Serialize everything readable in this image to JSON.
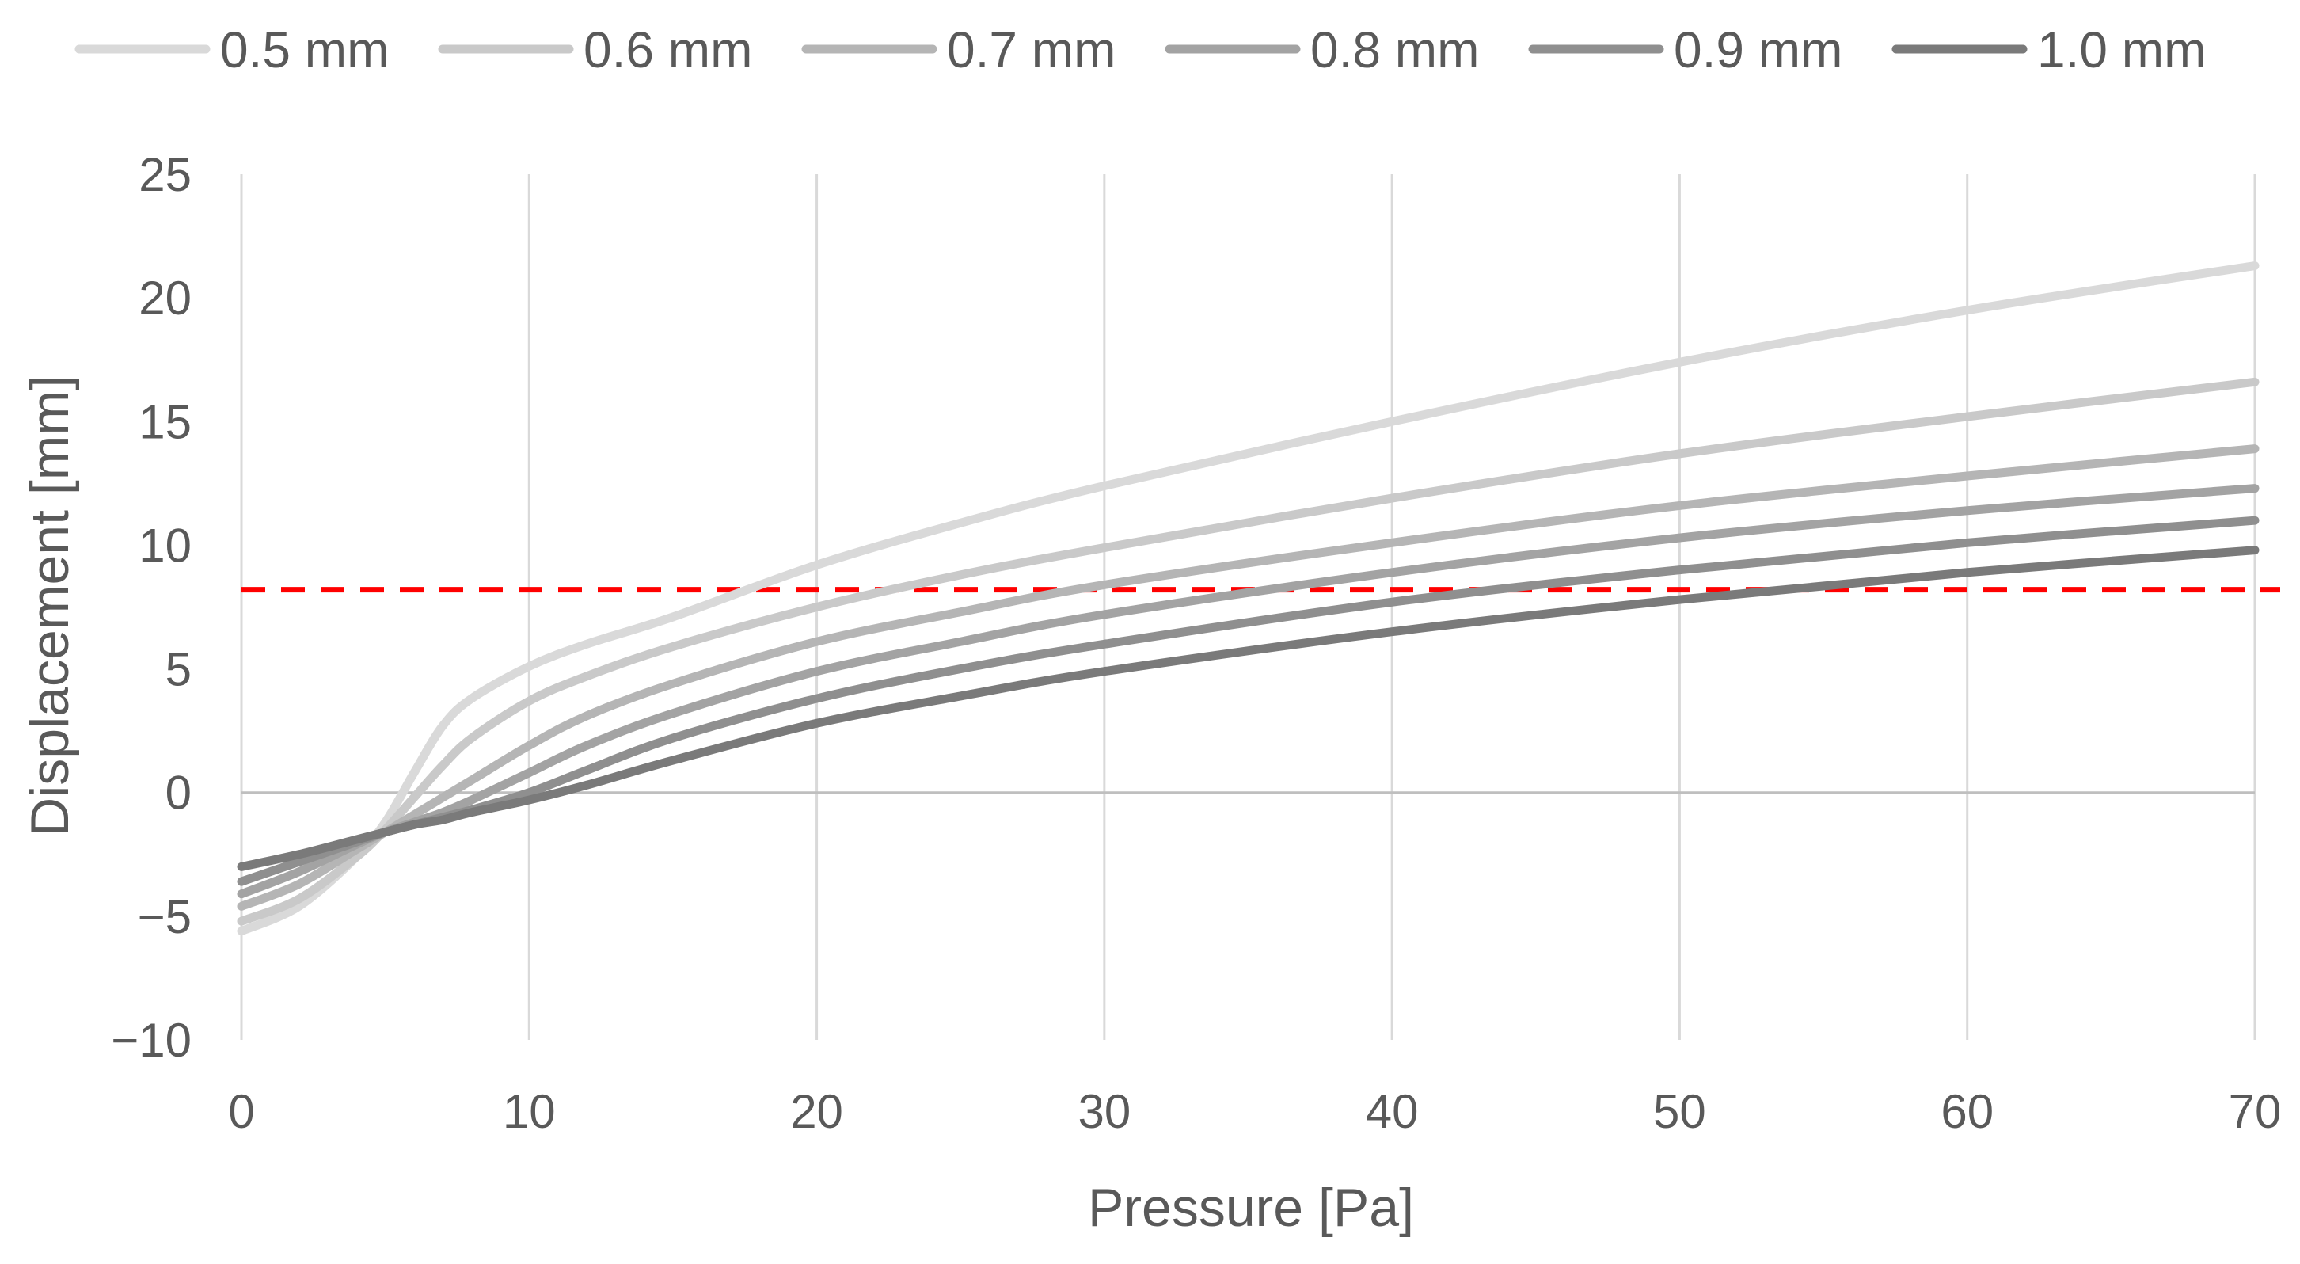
{
  "chart_data": {
    "type": "line",
    "title": "",
    "xlabel": "Pressure [Pa]",
    "ylabel": "Displacement [mm]",
    "xlim": [
      0,
      70
    ],
    "ylim": [
      -10,
      25
    ],
    "xticks": [
      0,
      10,
      20,
      30,
      40,
      50,
      60,
      70
    ],
    "yticks": [
      -10,
      -5,
      0,
      5,
      10,
      15,
      20,
      25
    ],
    "xtick_labels": [
      "0",
      "10",
      "20",
      "30",
      "40",
      "50",
      "60",
      "70"
    ],
    "ytick_labels": [
      "−10",
      "−5",
      "0",
      "5",
      "10",
      "15",
      "20",
      "25"
    ],
    "grid": "vertical",
    "legend_position": "top",
    "reference_line": {
      "y": 8.2,
      "color": "#ff0000",
      "style": "dashed"
    },
    "series": [
      {
        "name": "0.5 mm",
        "color": "#d9d9d9",
        "x": [
          0,
          2,
          4,
          5,
          6,
          7,
          8,
          10,
          12,
          15,
          20,
          25,
          30,
          40,
          50,
          60,
          70
        ],
        "y": [
          -5.6,
          -4.6,
          -2.6,
          -1.2,
          0.8,
          2.7,
          3.8,
          5.1,
          6.0,
          7.1,
          9.2,
          10.9,
          12.4,
          15.0,
          17.4,
          19.5,
          21.3
        ]
      },
      {
        "name": "0.6 mm",
        "color": "#c9c9c9",
        "x": [
          0,
          2,
          4,
          5,
          6,
          7,
          8,
          10,
          12,
          15,
          20,
          25,
          30,
          40,
          50,
          60,
          70
        ],
        "y": [
          -5.2,
          -4.3,
          -2.6,
          -1.5,
          -0.2,
          1.1,
          2.2,
          3.7,
          4.7,
          5.9,
          7.5,
          8.8,
          9.9,
          11.9,
          13.7,
          15.2,
          16.6
        ]
      },
      {
        "name": "0.7 mm",
        "color": "#b5b5b5",
        "x": [
          0,
          2,
          4,
          5,
          6,
          7,
          8,
          10,
          12,
          15,
          20,
          25,
          30,
          40,
          50,
          60,
          70
        ],
        "y": [
          -4.6,
          -3.7,
          -2.3,
          -1.6,
          -0.9,
          -0.2,
          0.5,
          1.9,
          3.1,
          4.4,
          6.1,
          7.3,
          8.4,
          10.1,
          11.6,
          12.8,
          13.9
        ]
      },
      {
        "name": "0.8 mm",
        "color": "#a3a3a3",
        "x": [
          0,
          2,
          4,
          5,
          6,
          7,
          8,
          10,
          12,
          15,
          20,
          25,
          30,
          40,
          50,
          60,
          70
        ],
        "y": [
          -4.1,
          -3.2,
          -2.1,
          -1.6,
          -1.2,
          -0.8,
          -0.3,
          0.8,
          1.9,
          3.2,
          4.9,
          6.1,
          7.2,
          8.9,
          10.3,
          11.4,
          12.3
        ]
      },
      {
        "name": "0.9 mm",
        "color": "#8f8f8f",
        "x": [
          0,
          2,
          4,
          5,
          6,
          7,
          8,
          10,
          12,
          15,
          20,
          25,
          30,
          40,
          50,
          60,
          70
        ],
        "y": [
          -3.6,
          -2.8,
          -2.0,
          -1.6,
          -1.3,
          -1.0,
          -0.7,
          0.0,
          0.9,
          2.2,
          3.8,
          5.0,
          6.0,
          7.7,
          9.0,
          10.1,
          11.0
        ]
      },
      {
        "name": "1.0 mm",
        "color": "#7a7a7a",
        "x": [
          0,
          2,
          4,
          5,
          6,
          7,
          8,
          10,
          12,
          15,
          20,
          25,
          30,
          40,
          50,
          60,
          70
        ],
        "y": [
          -3.0,
          -2.5,
          -1.9,
          -1.6,
          -1.3,
          -1.1,
          -0.8,
          -0.3,
          0.3,
          1.3,
          2.8,
          3.9,
          4.9,
          6.5,
          7.8,
          8.9,
          9.8
        ]
      }
    ]
  }
}
